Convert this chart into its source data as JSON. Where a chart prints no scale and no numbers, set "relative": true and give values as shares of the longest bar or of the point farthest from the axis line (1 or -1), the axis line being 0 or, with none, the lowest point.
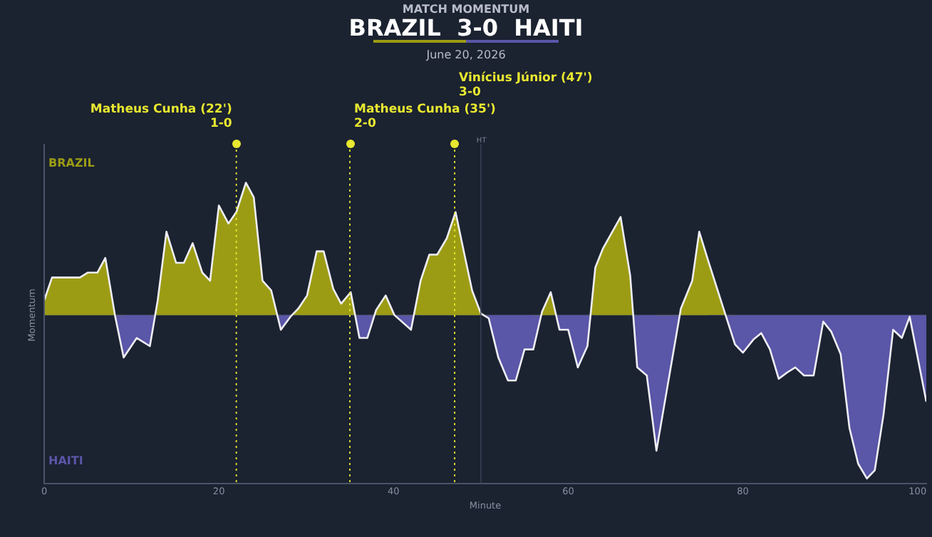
{
  "chart_data": {
    "type": "area",
    "title": "BRAZIL  3-0  HAITI",
    "subtitle": "June 20, 2026",
    "xlabel": "Minute",
    "ylabel": "Momentum",
    "annotations": [
      "MATCH MOMENTUM",
      "BRAZIL",
      "HAITI"
    ],
    "relative": true,
    "xlim": [
      0,
      101
    ],
    "xticks": [
      0,
      20,
      40,
      60,
      80,
      100
    ],
    "tick_labels": "x",
    "grid": false,
    "legend": false,
    "marker": "none",
    "line_style": "solid",
    "ref_lines": [
      {
        "axis": "x",
        "value": 22,
        "label": "Matheus Cunha (22')\n1-0",
        "color": "#e8e830",
        "line_style": "dotted"
      },
      {
        "axis": "x",
        "value": 35,
        "label": "Matheus Cunha (35')\n2-0",
        "color": "#e8e830",
        "line_style": "dotted"
      },
      {
        "axis": "x",
        "value": 47,
        "label": "Vinícius Júnior (47')\n3-0",
        "color": "#e8e830",
        "line_style": "dotted"
      },
      {
        "axis": "x",
        "value": 50,
        "label": "HT",
        "color": "#3a4456",
        "line_style": "solid"
      }
    ],
    "series": [
      {
        "color": "#eeeef4",
        "colors": [
          "#9c9c14",
          "#9c9c14",
          "#9c9c14",
          "#9c9c14",
          "#9c9c14",
          "#9c9c14",
          "#9c9c14",
          "#5a56a8",
          "#5a56a8",
          "#5a56a8",
          "#9c9c14",
          "#9c9c14",
          "#9c9c14",
          "#9c9c14",
          "#9c9c14",
          "#9c9c14",
          "#9c9c14",
          "#9c9c14",
          "#9c9c14",
          "#9c9c14",
          "#9c9c14",
          "#9c9c14",
          "#9c9c14",
          "#9c9c14",
          "#5a56a8",
          "#5a56a8",
          "#9c9c14",
          "#9c9c14",
          "#9c9c14",
          "#9c9c14",
          "#9c9c14",
          "#9c9c14",
          "#9c9c14",
          "#5a56a8",
          "#5a56a8",
          "#9c9c14",
          "#9c9c14",
          "#9c9c14",
          "#5a56a8",
          "#9c9c14",
          "#9c9c14",
          "#9c9c14",
          "#9c9c14",
          "#9c9c14",
          "#9c9c14",
          "#9c9c14",
          "#9c9c14",
          "#5a56a8",
          "#5a56a8",
          "#5a56a8",
          "#5a56a8",
          "#5a56a8",
          "#5a56a8",
          "#9c9c14",
          "#9c9c14",
          "#5a56a8",
          "#5a56a8",
          "#5a56a8",
          "#5a56a8",
          "#9c9c14",
          "#9c9c14",
          "#9c9c14",
          "#9c9c14",
          "#5a56a8",
          "#5a56a8",
          "#5a56a8",
          "#9c9c14",
          "#9c9c14",
          "#9c9c14",
          "#9c9c14",
          "#5a56a8",
          "#5a56a8",
          "#5a56a8",
          "#5a56a8",
          "#5a56a8",
          "#5a56a8",
          "#5a56a8",
          "#5a56a8",
          "#5a56a8",
          "#5a56a8",
          "#5a56a8",
          "#5a56a8",
          "#5a56a8",
          "#5a56a8",
          "#5a56a8",
          "#5a56a8",
          "#5a56a8",
          "#5a56a8",
          "#5a56a8",
          "#5a56a8",
          "#5a56a8",
          "#5a56a8"
        ],
        "x": [
          0,
          0.9,
          4.1,
          5,
          6.1,
          7,
          8.1,
          9.1,
          10.6,
          12.1,
          13,
          14,
          15.1,
          16,
          17,
          18.1,
          19,
          20,
          21.1,
          22,
          23.1,
          24,
          25,
          26,
          27.1,
          28.2,
          29.1,
          30.1,
          31.2,
          32,
          33.1,
          34,
          35.1,
          36.1,
          37,
          38,
          39.1,
          40.1,
          42,
          43.1,
          44.1,
          45,
          46.1,
          47.1,
          48.2,
          49,
          50,
          50.9,
          52,
          53.1,
          54,
          55,
          56,
          57,
          58,
          59,
          60,
          61.1,
          62.2,
          63.1,
          64,
          66,
          67.1,
          67.9,
          69,
          70.1,
          72.9,
          74.2,
          75,
          76.1,
          79.1,
          80,
          81.2,
          82.1,
          83.1,
          84.1,
          85.1,
          86,
          87,
          88.1,
          89.2,
          90.1,
          91.2,
          92.2,
          93.2,
          94.2,
          95.1,
          96.1,
          97.2,
          98.2,
          99.1,
          101
        ],
        "values": [
          0.09,
          0.23,
          0.23,
          0.26,
          0.26,
          0.35,
          0,
          -0.26,
          -0.14,
          -0.19,
          0.09,
          0.51,
          0.32,
          0.32,
          0.44,
          0.26,
          0.21,
          0.67,
          0.56,
          0.63,
          0.81,
          0.72,
          0.21,
          0.15,
          -0.09,
          -0.01,
          0.04,
          0.12,
          0.39,
          0.39,
          0.16,
          0.07,
          0.14,
          -0.14,
          -0.14,
          0.03,
          0.12,
          0,
          -0.09,
          0.21,
          0.37,
          0.37,
          0.47,
          0.63,
          0.35,
          0.15,
          0.01,
          -0.02,
          -0.26,
          -0.4,
          -0.4,
          -0.21,
          -0.21,
          0.02,
          0.14,
          -0.09,
          -0.09,
          -0.32,
          -0.19,
          0.29,
          0.41,
          0.6,
          0.24,
          -0.32,
          -0.37,
          -0.83,
          0.04,
          0.21,
          0.51,
          0.32,
          -0.18,
          -0.23,
          -0.15,
          -0.11,
          -0.21,
          -0.39,
          -0.35,
          -0.32,
          -0.37,
          -0.37,
          -0.04,
          -0.1,
          -0.24,
          -0.69,
          -0.91,
          -1,
          -0.95,
          -0.61,
          -0.09,
          -0.14,
          -0.01,
          -0.53
        ]
      }
    ]
  }
}
